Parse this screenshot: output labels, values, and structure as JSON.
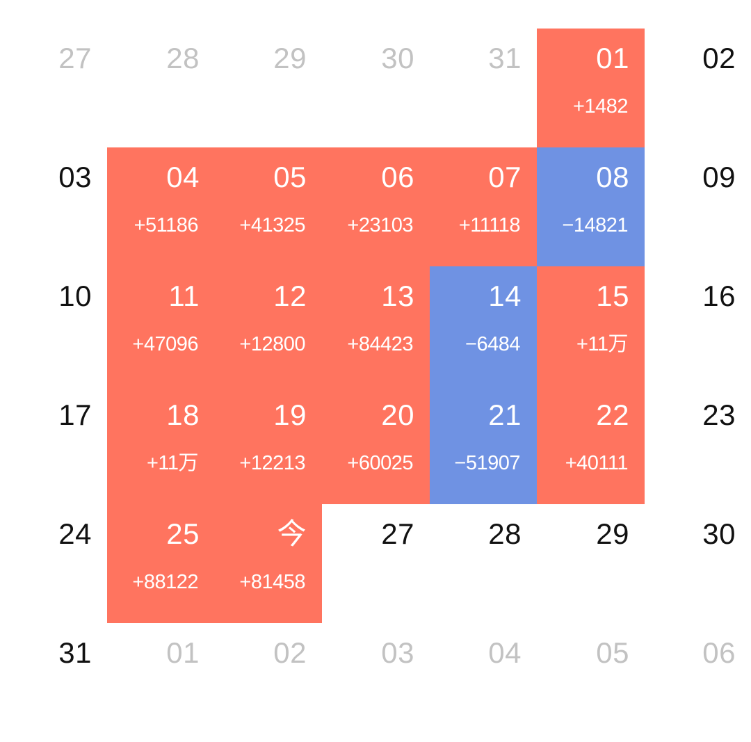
{
  "calendar": {
    "weeks": [
      [
        {
          "day": "27",
          "amount": "",
          "style": "muted"
        },
        {
          "day": "28",
          "amount": "",
          "style": "muted"
        },
        {
          "day": "29",
          "amount": "",
          "style": "muted"
        },
        {
          "day": "30",
          "amount": "",
          "style": "muted"
        },
        {
          "day": "31",
          "amount": "",
          "style": "muted"
        },
        {
          "day": "01",
          "amount": "+1482",
          "style": "gain"
        },
        {
          "day": "02",
          "amount": "",
          "style": "plain"
        }
      ],
      [
        {
          "day": "03",
          "amount": "",
          "style": "plain"
        },
        {
          "day": "04",
          "amount": "+51186",
          "style": "gain"
        },
        {
          "day": "05",
          "amount": "+41325",
          "style": "gain"
        },
        {
          "day": "06",
          "amount": "+23103",
          "style": "gain"
        },
        {
          "day": "07",
          "amount": "+11118",
          "style": "gain"
        },
        {
          "day": "08",
          "amount": "−14821",
          "style": "loss"
        },
        {
          "day": "09",
          "amount": "",
          "style": "plain"
        }
      ],
      [
        {
          "day": "10",
          "amount": "",
          "style": "plain"
        },
        {
          "day": "11",
          "amount": "+47096",
          "style": "gain"
        },
        {
          "day": "12",
          "amount": "+12800",
          "style": "gain"
        },
        {
          "day": "13",
          "amount": "+84423",
          "style": "gain"
        },
        {
          "day": "14",
          "amount": "−6484",
          "style": "loss"
        },
        {
          "day": "15",
          "amount": "+11万",
          "style": "gain"
        },
        {
          "day": "16",
          "amount": "",
          "style": "plain"
        }
      ],
      [
        {
          "day": "17",
          "amount": "",
          "style": "plain"
        },
        {
          "day": "18",
          "amount": "+11万",
          "style": "gain"
        },
        {
          "day": "19",
          "amount": "+12213",
          "style": "gain"
        },
        {
          "day": "20",
          "amount": "+60025",
          "style": "gain"
        },
        {
          "day": "21",
          "amount": "−51907",
          "style": "loss"
        },
        {
          "day": "22",
          "amount": "+40111",
          "style": "gain"
        },
        {
          "day": "23",
          "amount": "",
          "style": "plain"
        }
      ],
      [
        {
          "day": "24",
          "amount": "",
          "style": "plain"
        },
        {
          "day": "25",
          "amount": "+88122",
          "style": "gain"
        },
        {
          "day": "今",
          "amount": "+81458",
          "style": "gain"
        },
        {
          "day": "27",
          "amount": "",
          "style": "plain"
        },
        {
          "day": "28",
          "amount": "",
          "style": "plain"
        },
        {
          "day": "29",
          "amount": "",
          "style": "plain"
        },
        {
          "day": "30",
          "amount": "",
          "style": "plain"
        }
      ],
      [
        {
          "day": "31",
          "amount": "",
          "style": "plain"
        },
        {
          "day": "01",
          "amount": "",
          "style": "muted"
        },
        {
          "day": "02",
          "amount": "",
          "style": "muted"
        },
        {
          "day": "03",
          "amount": "",
          "style": "muted"
        },
        {
          "day": "04",
          "amount": "",
          "style": "muted"
        },
        {
          "day": "05",
          "amount": "",
          "style": "muted"
        },
        {
          "day": "06",
          "amount": "",
          "style": "muted"
        }
      ]
    ]
  },
  "colors": {
    "gain": "#ff745f",
    "loss": "#6f92e3",
    "text": "#111111",
    "muted": "#c2c2c2"
  }
}
